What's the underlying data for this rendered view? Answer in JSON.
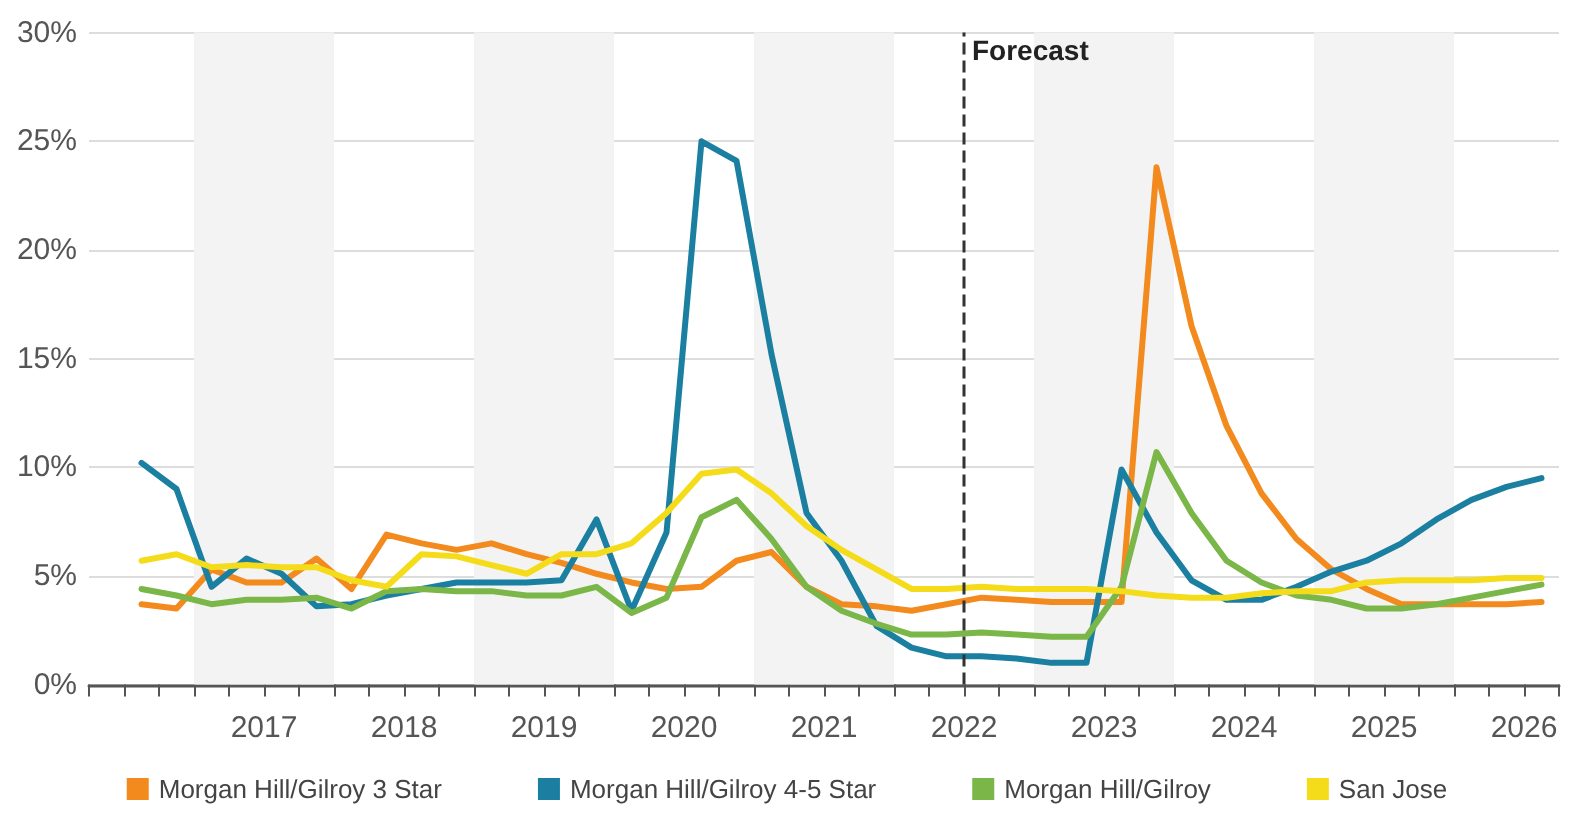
{
  "chart_data": {
    "type": "line",
    "x": [
      2016.625,
      2016.875,
      2017.125,
      2017.375,
      2017.625,
      2017.875,
      2018.125,
      2018.375,
      2018.625,
      2018.875,
      2019.125,
      2019.375,
      2019.625,
      2019.875,
      2020.125,
      2020.375,
      2020.625,
      2020.875,
      2021.125,
      2021.375,
      2021.625,
      2021.875,
      2022.125,
      2022.375,
      2022.625,
      2022.875,
      2023.125,
      2023.375,
      2023.625,
      2023.875,
      2024.125,
      2024.375,
      2024.625,
      2024.875,
      2025.125,
      2025.375,
      2025.625,
      2025.875,
      2026.125,
      2026.375,
      2026.625
    ],
    "series": [
      {
        "name": "Morgan Hill/Gilroy 3 Star",
        "color": "#f28a1e",
        "values": [
          3.7,
          3.5,
          5.3,
          4.7,
          4.7,
          5.8,
          4.4,
          6.9,
          6.5,
          6.2,
          6.5,
          6.0,
          5.6,
          5.1,
          4.7,
          4.4,
          4.5,
          5.7,
          6.1,
          4.5,
          3.7,
          3.6,
          3.4,
          3.7,
          4.0,
          3.9,
          3.8,
          3.8,
          3.8,
          23.8,
          16.5,
          11.9,
          8.8,
          6.7,
          5.3,
          4.4,
          3.7,
          3.7,
          3.7,
          3.7,
          3.8
        ]
      },
      {
        "name": "Morgan Hill/Gilroy 4-5 Star",
        "color": "#1a7fa0",
        "values": [
          10.2,
          9.0,
          4.5,
          5.8,
          5.1,
          3.6,
          3.7,
          4.1,
          4.4,
          4.7,
          4.7,
          4.7,
          4.8,
          7.6,
          3.4,
          7.0,
          25.0,
          24.1,
          15.2,
          7.9,
          5.7,
          2.7,
          1.7,
          1.3,
          1.3,
          1.2,
          1.0,
          1.0,
          9.9,
          7.0,
          4.8,
          3.9,
          3.9,
          4.5,
          5.2,
          5.7,
          6.5,
          7.6,
          8.5,
          9.1,
          9.5
        ]
      },
      {
        "name": "Morgan Hill/Gilroy",
        "color": "#7ab648",
        "values": [
          4.4,
          4.1,
          3.7,
          3.9,
          3.9,
          4.0,
          3.5,
          4.3,
          4.4,
          4.3,
          4.3,
          4.1,
          4.1,
          4.5,
          3.3,
          4.0,
          7.7,
          8.5,
          6.7,
          4.5,
          3.4,
          2.8,
          2.3,
          2.3,
          2.4,
          2.3,
          2.2,
          2.2,
          4.5,
          10.7,
          7.9,
          5.7,
          4.7,
          4.1,
          3.9,
          3.5,
          3.5,
          3.7,
          4.0,
          4.3,
          4.6
        ]
      },
      {
        "name": "San Jose",
        "color": "#f5dc1a",
        "values": [
          5.7,
          6.0,
          5.4,
          5.5,
          5.4,
          5.4,
          4.8,
          4.5,
          6.0,
          5.9,
          5.5,
          5.1,
          6.0,
          6.0,
          6.5,
          7.9,
          9.7,
          9.9,
          8.8,
          7.3,
          6.2,
          5.3,
          4.4,
          4.4,
          4.5,
          4.4,
          4.4,
          4.4,
          4.3,
          4.1,
          4.0,
          4.0,
          4.2,
          4.3,
          4.3,
          4.7,
          4.8,
          4.8,
          4.8,
          4.9,
          4.9
        ]
      }
    ],
    "xlim": [
      2016.25,
      2026.75
    ],
    "xticks": [
      {
        "value": 2016.25,
        "label": null
      },
      {
        "value": 2016.5,
        "label": null
      },
      {
        "value": 2016.75,
        "label": null
      },
      {
        "value": 2017,
        "label": null
      },
      {
        "value": 2017.25,
        "label": null
      },
      {
        "value": 2017.5,
        "label": "2017"
      },
      {
        "value": 2017.75,
        "label": null
      },
      {
        "value": 2018,
        "label": null
      },
      {
        "value": 2018.25,
        "label": null
      },
      {
        "value": 2018.5,
        "label": "2018"
      },
      {
        "value": 2018.75,
        "label": null
      },
      {
        "value": 2019,
        "label": null
      },
      {
        "value": 2019.25,
        "label": null
      },
      {
        "value": 2019.5,
        "label": "2019"
      },
      {
        "value": 2019.75,
        "label": null
      },
      {
        "value": 2020,
        "label": null
      },
      {
        "value": 2020.25,
        "label": null
      },
      {
        "value": 2020.5,
        "label": "2020"
      },
      {
        "value": 2020.75,
        "label": null
      },
      {
        "value": 2021,
        "label": null
      },
      {
        "value": 2021.25,
        "label": null
      },
      {
        "value": 2021.5,
        "label": "2021"
      },
      {
        "value": 2021.75,
        "label": null
      },
      {
        "value": 2022,
        "label": null
      },
      {
        "value": 2022.25,
        "label": null
      },
      {
        "value": 2022.5,
        "label": "2022"
      },
      {
        "value": 2022.75,
        "label": null
      },
      {
        "value": 2023,
        "label": null
      },
      {
        "value": 2023.25,
        "label": null
      },
      {
        "value": 2023.5,
        "label": "2023"
      },
      {
        "value": 2023.75,
        "label": null
      },
      {
        "value": 2024,
        "label": null
      },
      {
        "value": 2024.25,
        "label": null
      },
      {
        "value": 2024.5,
        "label": "2024"
      },
      {
        "value": 2024.75,
        "label": null
      },
      {
        "value": 2025,
        "label": null
      },
      {
        "value": 2025.25,
        "label": null
      },
      {
        "value": 2025.5,
        "label": "2025"
      },
      {
        "value": 2025.75,
        "label": null
      },
      {
        "value": 2026,
        "label": null
      },
      {
        "value": 2026.25,
        "label": null
      },
      {
        "value": 2026.5,
        "label": "2026"
      },
      {
        "value": 2026.75,
        "label": null
      }
    ],
    "ylim": [
      0,
      30
    ],
    "yticks": [
      {
        "value": 0,
        "label": "0%"
      },
      {
        "value": 5,
        "label": "5%"
      },
      {
        "value": 10,
        "label": "10%"
      },
      {
        "value": 15,
        "label": "15%"
      },
      {
        "value": 20,
        "label": "20%"
      },
      {
        "value": 25,
        "label": "25%"
      },
      {
        "value": 30,
        "label": "30%"
      }
    ],
    "ref_lines": [
      {
        "axis": "x",
        "value": 2022.5,
        "label": "Forecast",
        "color": "#333333",
        "line_style": "dashed"
      }
    ],
    "bands": [
      {
        "axis": "x",
        "from": 2017,
        "to": 2018,
        "color": "#f3f3f3"
      },
      {
        "axis": "x",
        "from": 2019,
        "to": 2020,
        "color": "#f3f3f3"
      },
      {
        "axis": "x",
        "from": 2021,
        "to": 2022,
        "color": "#f3f3f3"
      },
      {
        "axis": "x",
        "from": 2023,
        "to": 2024,
        "color": "#f3f3f3"
      },
      {
        "axis": "x",
        "from": 2025,
        "to": 2026,
        "color": "#f3f3f3"
      }
    ],
    "grid": "y",
    "legend": "bottom",
    "marker": "none",
    "line_style": "solid"
  }
}
